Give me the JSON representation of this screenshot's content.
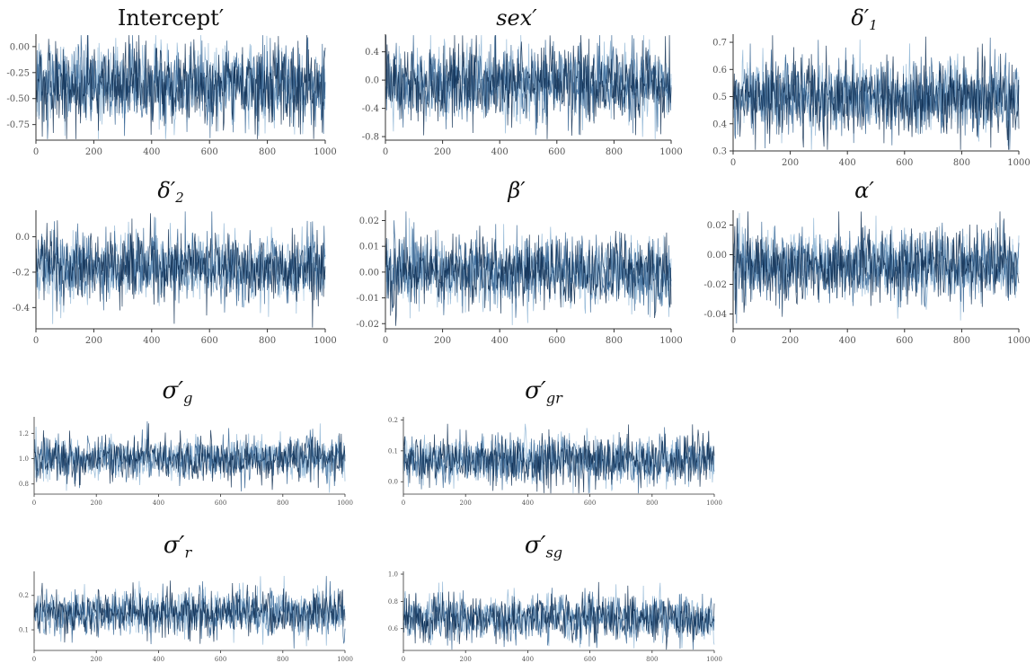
{
  "chart_data": [
    {
      "id": "p1",
      "type": "line",
      "title": "Intercept′",
      "title_style": "roman",
      "sub": "",
      "x_ticks": [
        0,
        200,
        400,
        600,
        800,
        1000
      ],
      "xlim": [
        0,
        1000
      ],
      "y_ticks": [
        "0.00",
        "-0.25",
        "-0.50",
        "-0.75"
      ],
      "y_tick_values": [
        0,
        -0.25,
        -0.5,
        -0.75
      ],
      "ylim": [
        -0.9,
        0.12
      ],
      "center": -0.37,
      "spread": 0.2,
      "n_iterations": 1000,
      "n_chains": 4
    },
    {
      "id": "p2",
      "type": "line",
      "title": "sex′",
      "title_style": "italic",
      "sub": "",
      "x_ticks": [
        0,
        200,
        400,
        600,
        800,
        1000
      ],
      "xlim": [
        0,
        1000
      ],
      "y_ticks": [
        "0.4",
        "0.0",
        "-0.4",
        "-0.8"
      ],
      "y_tick_values": [
        0.4,
        0,
        -0.4,
        -0.8
      ],
      "ylim": [
        -0.85,
        0.65
      ],
      "center": -0.05,
      "spread": 0.27,
      "n_iterations": 1000,
      "n_chains": 4
    },
    {
      "id": "p3",
      "type": "line",
      "title": "δ′",
      "title_style": "italic",
      "sub": "1",
      "x_ticks": [
        0,
        200,
        400,
        600,
        800,
        1000
      ],
      "xlim": [
        0,
        1000
      ],
      "y_ticks": [
        "0.7",
        "0.6",
        "0.5",
        "0.4",
        "0.3"
      ],
      "y_tick_values": [
        0.7,
        0.6,
        0.5,
        0.4,
        0.3
      ],
      "ylim": [
        0.3,
        0.73
      ],
      "center": 0.5,
      "spread": 0.07,
      "n_iterations": 1000,
      "n_chains": 4
    },
    {
      "id": "p4",
      "type": "line",
      "title": "δ′",
      "title_style": "italic",
      "sub": "2",
      "x_ticks": [
        0,
        200,
        400,
        600,
        800,
        1000
      ],
      "xlim": [
        0,
        1000
      ],
      "y_ticks": [
        "0.0",
        "-0.2",
        "-0.4"
      ],
      "y_tick_values": [
        0,
        -0.2,
        -0.4
      ],
      "ylim": [
        -0.52,
        0.15
      ],
      "center": -0.17,
      "spread": 0.1,
      "n_iterations": 1000,
      "n_chains": 4
    },
    {
      "id": "p5",
      "type": "line",
      "title": "β′",
      "title_style": "italic",
      "sub": "",
      "x_ticks": [
        0,
        200,
        400,
        600,
        800,
        1000
      ],
      "xlim": [
        0,
        1000
      ],
      "y_ticks": [
        "0.02",
        "0.01",
        "0.00",
        "-0.01",
        "-0.02"
      ],
      "y_tick_values": [
        0.02,
        0.01,
        0,
        -0.01,
        -0.02
      ],
      "ylim": [
        -0.022,
        0.024
      ],
      "center": 0.0,
      "spread": 0.007,
      "n_iterations": 1000,
      "n_chains": 4
    },
    {
      "id": "p6",
      "type": "line",
      "title": "α′",
      "title_style": "italic",
      "sub": "",
      "x_ticks": [
        0,
        200,
        400,
        600,
        800,
        1000
      ],
      "xlim": [
        0,
        1000
      ],
      "y_ticks": [
        "0.02",
        "0.00",
        "-0.02",
        "-0.04"
      ],
      "y_tick_values": [
        0.02,
        0,
        -0.02,
        -0.04
      ],
      "ylim": [
        -0.05,
        0.03
      ],
      "center": -0.007,
      "spread": 0.012,
      "n_iterations": 1000,
      "n_chains": 4
    },
    {
      "id": "p7",
      "type": "line",
      "title": "σ′",
      "title_style": "italic",
      "sub": "g",
      "x_ticks": [
        0,
        200,
        400,
        600,
        800,
        1000
      ],
      "xlim": [
        0,
        1000
      ],
      "y_ticks": [
        "1.2",
        "1.0",
        "0.8"
      ],
      "y_tick_values": [
        1.2,
        1.0,
        0.8
      ],
      "ylim": [
        0.72,
        1.33
      ],
      "center": 1.0,
      "spread": 0.09,
      "n_iterations": 1000,
      "n_chains": 4
    },
    {
      "id": "p8",
      "type": "line",
      "title": "σ′",
      "title_style": "italic",
      "sub": "gr",
      "x_ticks": [
        0,
        200,
        400,
        600,
        800,
        1000
      ],
      "xlim": [
        0,
        1000
      ],
      "y_ticks": [
        "0.2",
        "0.1",
        "0.0"
      ],
      "y_tick_values": [
        0.2,
        0.1,
        0
      ],
      "ylim": [
        -0.04,
        0.21
      ],
      "center": 0.07,
      "spread": 0.04,
      "n_iterations": 1000,
      "n_chains": 4
    },
    {
      "id": "p9",
      "type": "line",
      "title": "σ′",
      "title_style": "italic",
      "sub": "r",
      "x_ticks": [
        0,
        200,
        400,
        600,
        800,
        1000
      ],
      "xlim": [
        0,
        1000
      ],
      "y_ticks": [
        "0.2",
        "0.1"
      ],
      "y_tick_values": [
        0.2,
        0.1
      ],
      "ylim": [
        0.04,
        0.27
      ],
      "center": 0.15,
      "spread": 0.035,
      "n_iterations": 1000,
      "n_chains": 4
    },
    {
      "id": "p10",
      "type": "line",
      "title": "σ′",
      "title_style": "italic",
      "sub": "sg",
      "x_ticks": [
        0,
        200,
        400,
        600,
        800,
        1000
      ],
      "xlim": [
        0,
        1000
      ],
      "y_ticks": [
        "1.0",
        "0.8",
        "0.6"
      ],
      "y_tick_values": [
        1.0,
        0.8,
        0.6
      ],
      "ylim": [
        0.44,
        1.02
      ],
      "center": 0.68,
      "spread": 0.085,
      "n_iterations": 1000,
      "n_chains": 4
    }
  ],
  "colors": {
    "chain_1": "#0b2a4f",
    "chain_2": "#2f5f8f",
    "chain_3": "#8bb3d3",
    "chain_4": "#cfe2f1",
    "axis": "#333333",
    "tick_text": "#555555"
  }
}
